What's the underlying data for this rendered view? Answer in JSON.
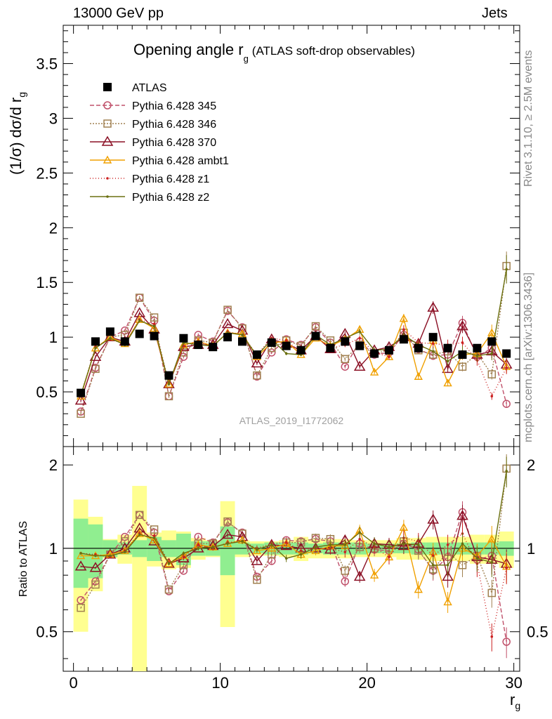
{
  "header": {
    "left": "13000 GeV pp",
    "right": "Jets",
    "side_top": "Rivet 3.1.10, ≥ 2.5M events",
    "side_bottom": "mcplots.cern.ch [arXiv:1306.3436]"
  },
  "chart_data": [
    {
      "type": "line",
      "panel": "main",
      "title": "Opening angle r",
      "title_subscript": "g",
      "title_suffix": "(ATLAS soft-drop observables)",
      "ylabel": "(1/σ) dσ/d r",
      "ylabel_subscript": "g",
      "watermark": "ATLAS_2019_I1772062",
      "xlim": [
        -0.7,
        30.4
      ],
      "ylim": [
        0,
        3.85
      ],
      "yticks": [
        "0.5",
        "1",
        "1.5",
        "2",
        "2.5",
        "3",
        "3.5"
      ],
      "x": [
        0.5,
        1.5,
        2.5,
        3.5,
        4.5,
        5.5,
        6.5,
        7.5,
        8.5,
        9.5,
        10.5,
        11.5,
        12.5,
        13.5,
        14.5,
        15.5,
        16.5,
        17.5,
        18.5,
        19.5,
        20.5,
        21.5,
        22.5,
        23.5,
        24.5,
        25.5,
        26.5,
        27.5,
        28.5,
        29.5
      ],
      "series": [
        {
          "name": "ATLAS",
          "color": "#000000",
          "marker": "square-filled",
          "values": [
            0.49,
            0.96,
            1.05,
            0.96,
            1.03,
            1.01,
            0.65,
            0.99,
            0.93,
            0.91,
            1.0,
            0.96,
            0.84,
            0.95,
            0.92,
            0.88,
            1.01,
            0.9,
            0.96,
            0.92,
            0.85,
            0.88,
            0.98,
            0.9,
            1.0,
            0.9,
            0.84,
            0.9,
            0.96,
            0.85
          ]
        },
        {
          "name": "Pythia 6.428 345",
          "color": "#c0506a",
          "marker": "circle-open",
          "dash": "6,3",
          "values": [
            0.32,
            0.72,
            1.0,
            1.06,
            1.36,
            1.15,
            0.46,
            0.82,
            1.02,
            0.96,
            1.24,
            1.09,
            0.64,
            0.86,
            0.98,
            0.93,
            1.09,
            0.95,
            0.73,
            0.96,
            0.84,
            0.86,
            1.02,
            0.89,
            0.83,
            0.84,
            1.13,
            0.82,
            0.9,
            0.39
          ]
        },
        {
          "name": "Pythia 6.428 346",
          "color": "#a08050",
          "marker": "square-open",
          "dash": "2,2",
          "values": [
            0.3,
            0.71,
            1.0,
            1.02,
            1.36,
            1.18,
            0.46,
            0.86,
            0.97,
            0.95,
            1.25,
            1.08,
            0.65,
            0.9,
            0.97,
            0.92,
            1.1,
            0.97,
            0.8,
            0.93,
            0.85,
            0.88,
            1.04,
            0.88,
            0.84,
            0.87,
            0.73,
            0.85,
            0.66,
            1.65
          ]
        },
        {
          "name": "Pythia 6.428 370",
          "color": "#8b1025",
          "marker": "triangle-open",
          "values": [
            0.42,
            0.82,
            1.0,
            0.96,
            1.22,
            1.07,
            0.57,
            0.91,
            0.93,
            0.93,
            1.12,
            1.06,
            0.76,
            0.98,
            0.94,
            0.88,
            1.01,
            0.89,
            1.03,
            0.73,
            0.88,
            0.91,
            1.0,
            0.94,
            1.27,
            0.71,
            1.1,
            0.84,
            0.87,
            0.75
          ]
        },
        {
          "name": "Pythia 6.428 ambt1",
          "color": "#f0a000",
          "marker": "triangle-open-small",
          "values": [
            0.46,
            0.9,
            1.0,
            0.94,
            1.16,
            1.08,
            0.57,
            0.93,
            0.96,
            0.92,
            1.04,
            1.03,
            0.82,
            0.95,
            0.96,
            0.84,
            0.99,
            0.92,
            0.98,
            1.07,
            0.68,
            0.82,
            1.17,
            0.64,
            0.97,
            0.58,
            0.84,
            0.85,
            1.04,
            0.73
          ]
        },
        {
          "name": "Pythia 6.428 z1",
          "color": "#cc2020",
          "marker": "dot",
          "dash": "1,3",
          "values": [
            0.47,
            0.91,
            0.98,
            0.94,
            1.16,
            1.12,
            0.58,
            0.92,
            0.96,
            0.91,
            1.05,
            1.02,
            0.84,
            0.99,
            0.97,
            0.86,
            1.01,
            0.9,
            0.93,
            0.99,
            0.86,
            0.82,
            1.07,
            0.95,
            0.94,
            0.93,
            0.95,
            0.79,
            0.46,
            0.72
          ]
        },
        {
          "name": "Pythia 6.428 z2",
          "color": "#6b7010",
          "marker": "dot",
          "values": [
            0.47,
            0.9,
            0.99,
            0.93,
            1.15,
            1.1,
            0.57,
            0.95,
            0.93,
            0.92,
            1.04,
            1.02,
            0.83,
            0.98,
            0.85,
            0.84,
            1.02,
            0.93,
            0.99,
            1.05,
            0.88,
            0.89,
            1.02,
            0.93,
            0.87,
            0.78,
            0.87,
            0.83,
            0.85,
            1.62
          ]
        }
      ]
    },
    {
      "type": "line",
      "panel": "ratio",
      "ylabel": "Ratio to ATLAS",
      "xlabel": "r",
      "xlabel_subscript": "g",
      "xlim": [
        -0.7,
        30.4
      ],
      "xticks": [
        "0",
        "10",
        "20",
        "30"
      ],
      "ylim": [
        0.36,
        2.33
      ],
      "yticks": [
        "0.5",
        "1",
        "2"
      ],
      "reference": 1.0,
      "band_stat": [
        0.28,
        0.22,
        0.07,
        0.05,
        0.07,
        0.1,
        0.07,
        0.13,
        0.06,
        0.06,
        0.2,
        0.05,
        0.04,
        0.05,
        0.05,
        0.05,
        0.04,
        0.05,
        0.05,
        0.05,
        0.04,
        0.04,
        0.04,
        0.05,
        0.05,
        0.05,
        0.05,
        0.05,
        0.05,
        0.06
      ],
      "band_total": [
        0.5,
        0.3,
        0.08,
        0.12,
        0.68,
        0.14,
        0.16,
        0.15,
        0.09,
        0.07,
        0.48,
        0.07,
        0.06,
        0.06,
        0.07,
        0.1,
        0.08,
        0.08,
        0.08,
        0.07,
        0.07,
        0.07,
        0.09,
        0.09,
        0.1,
        0.1,
        0.1,
        0.12,
        0.12,
        0.15
      ],
      "series": [
        {
          "name": "Pythia 6.428 345",
          "values": [
            0.65,
            0.76,
            0.95,
            1.1,
            1.32,
            1.14,
            0.7,
            0.83,
            1.1,
            1.05,
            1.24,
            1.14,
            0.79,
            0.9,
            1.07,
            1.06,
            1.08,
            1.06,
            0.76,
            1.04,
            0.99,
            0.98,
            1.04,
            0.99,
            0.83,
            0.93,
            1.35,
            0.91,
            0.94,
            0.46
          ]
        },
        {
          "name": "Pythia 6.428 346",
          "values": [
            0.61,
            0.74,
            0.95,
            1.06,
            1.32,
            1.17,
            0.71,
            0.87,
            1.04,
            1.04,
            1.25,
            1.13,
            0.77,
            0.95,
            1.05,
            1.05,
            1.09,
            1.08,
            0.83,
            1.01,
            1.0,
            1.0,
            1.06,
            0.98,
            0.84,
            0.97,
            0.87,
            0.94,
            0.69,
            1.94
          ]
        },
        {
          "name": "Pythia 6.428 370",
          "values": [
            0.86,
            0.85,
            0.95,
            1.0,
            1.18,
            1.06,
            0.88,
            0.92,
            1.0,
            1.02,
            1.12,
            1.1,
            0.9,
            1.03,
            1.02,
            1.0,
            1.0,
            0.99,
            1.07,
            0.79,
            1.04,
            1.03,
            1.02,
            1.04,
            1.27,
            0.79,
            1.31,
            0.93,
            0.91,
            0.88
          ]
        },
        {
          "name": "Pythia 6.428 ambt1",
          "values": [
            0.94,
            0.94,
            0.95,
            0.98,
            1.13,
            1.07,
            0.88,
            0.94,
            1.03,
            1.01,
            1.04,
            1.07,
            0.98,
            1.0,
            1.04,
            0.95,
            0.98,
            1.02,
            1.02,
            1.16,
            0.8,
            0.93,
            1.19,
            0.71,
            0.97,
            0.64,
            1.0,
            0.94,
            1.08,
            0.86
          ]
        },
        {
          "name": "Pythia 6.428 z1",
          "values": [
            0.96,
            0.95,
            0.93,
            0.98,
            1.13,
            1.11,
            0.89,
            0.93,
            1.03,
            1.0,
            1.05,
            1.06,
            1.0,
            1.04,
            1.05,
            0.98,
            1.0,
            1.0,
            0.97,
            1.08,
            1.01,
            0.93,
            1.09,
            1.06,
            0.94,
            1.03,
            1.13,
            0.88,
            0.48,
            0.85
          ]
        },
        {
          "name": "Pythia 6.428 z2",
          "values": [
            0.96,
            0.94,
            0.94,
            0.97,
            1.12,
            1.09,
            0.88,
            0.96,
            1.0,
            1.01,
            1.04,
            1.06,
            0.99,
            1.03,
            0.92,
            0.95,
            1.01,
            1.03,
            1.03,
            1.14,
            1.04,
            1.01,
            1.04,
            1.03,
            0.87,
            0.87,
            1.04,
            0.92,
            0.89,
            1.9
          ]
        }
      ]
    }
  ]
}
